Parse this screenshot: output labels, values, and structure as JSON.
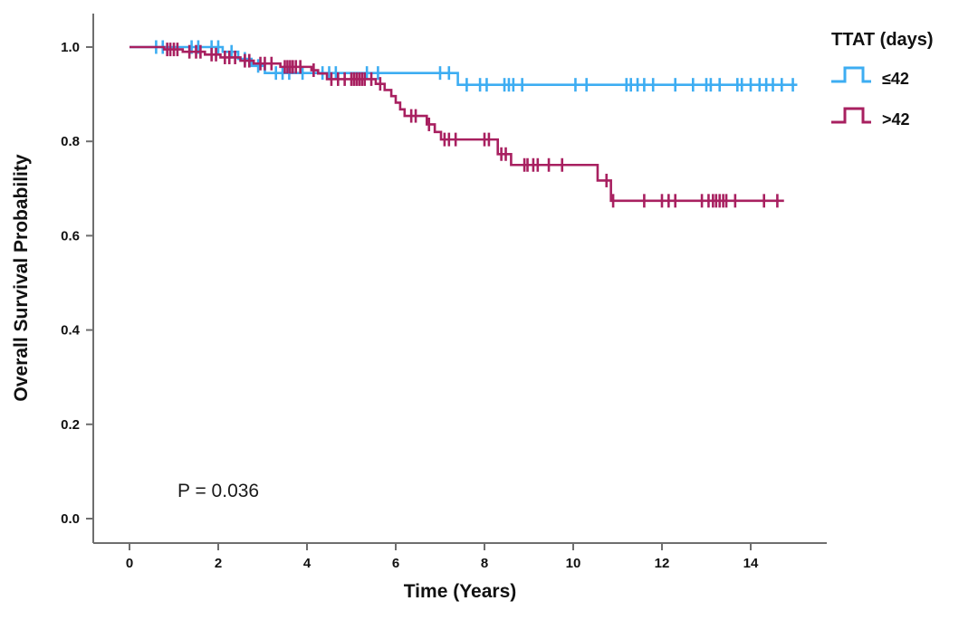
{
  "chart_data": {
    "type": "line",
    "subtype": "kaplan-meier-step-survival",
    "title": "",
    "xlabel": "Time (Years)",
    "ylabel": "Overall Survival Probability",
    "annotation": "P = 0.036",
    "legend_title": "TTAT (days)",
    "legend_position": "top-right-outside",
    "grid": false,
    "xlim": [
      -0.9,
      15.8
    ],
    "ylim": [
      -0.05,
      1.06
    ],
    "xticks": [
      "0",
      "2",
      "4",
      "6",
      "8",
      "10",
      "12",
      "14"
    ],
    "yticks": [
      "0.0",
      "0.2",
      "0.4",
      "0.6",
      "0.8",
      "1.0"
    ],
    "axis_color": "#6e6e6e",
    "series": [
      {
        "name": "≤42",
        "color": "#3dadf2",
        "end_x": 15.05,
        "steps": [
          [
            0,
            1.0
          ],
          [
            2.1,
            0.99
          ],
          [
            2.45,
            0.975
          ],
          [
            2.75,
            0.96
          ],
          [
            3.05,
            0.945
          ],
          [
            7.4,
            0.92
          ]
        ],
        "censors": [
          [
            0.6,
            1.0
          ],
          [
            0.75,
            1.0
          ],
          [
            1.4,
            1.0
          ],
          [
            1.55,
            1.0
          ],
          [
            1.85,
            1.0
          ],
          [
            2.0,
            1.0
          ],
          [
            2.3,
            0.99
          ],
          [
            2.6,
            0.975
          ],
          [
            2.9,
            0.96
          ],
          [
            3.3,
            0.945
          ],
          [
            3.45,
            0.945
          ],
          [
            3.6,
            0.945
          ],
          [
            3.9,
            0.945
          ],
          [
            4.35,
            0.945
          ],
          [
            4.5,
            0.945
          ],
          [
            4.65,
            0.945
          ],
          [
            5.35,
            0.945
          ],
          [
            5.6,
            0.945
          ],
          [
            7.0,
            0.945
          ],
          [
            7.2,
            0.945
          ],
          [
            7.6,
            0.92
          ],
          [
            7.9,
            0.92
          ],
          [
            8.05,
            0.92
          ],
          [
            8.45,
            0.92
          ],
          [
            8.55,
            0.92
          ],
          [
            8.65,
            0.92
          ],
          [
            8.85,
            0.92
          ],
          [
            10.05,
            0.92
          ],
          [
            10.3,
            0.92
          ],
          [
            11.2,
            0.92
          ],
          [
            11.3,
            0.92
          ],
          [
            11.45,
            0.92
          ],
          [
            11.6,
            0.92
          ],
          [
            11.8,
            0.92
          ],
          [
            12.3,
            0.92
          ],
          [
            12.7,
            0.92
          ],
          [
            13.0,
            0.92
          ],
          [
            13.1,
            0.92
          ],
          [
            13.3,
            0.92
          ],
          [
            13.7,
            0.92
          ],
          [
            13.8,
            0.92
          ],
          [
            14.0,
            0.92
          ],
          [
            14.2,
            0.92
          ],
          [
            14.35,
            0.92
          ],
          [
            14.5,
            0.92
          ],
          [
            14.7,
            0.92
          ],
          [
            14.95,
            0.92
          ]
        ]
      },
      {
        "name": ">42",
        "color": "#a82060",
        "end_x": 14.75,
        "steps": [
          [
            0,
            1.0
          ],
          [
            0.78,
            0.995
          ],
          [
            1.2,
            0.99
          ],
          [
            1.7,
            0.984
          ],
          [
            2.05,
            0.978
          ],
          [
            2.5,
            0.971
          ],
          [
            2.8,
            0.965
          ],
          [
            3.4,
            0.958
          ],
          [
            4.1,
            0.951
          ],
          [
            4.25,
            0.944
          ],
          [
            4.45,
            0.932
          ],
          [
            5.55,
            0.922
          ],
          [
            5.75,
            0.909
          ],
          [
            5.9,
            0.896
          ],
          [
            6.0,
            0.882
          ],
          [
            6.1,
            0.868
          ],
          [
            6.2,
            0.854
          ],
          [
            6.7,
            0.836
          ],
          [
            6.88,
            0.82
          ],
          [
            7.02,
            0.804
          ],
          [
            8.3,
            0.773
          ],
          [
            8.6,
            0.75
          ],
          [
            10.55,
            0.717
          ],
          [
            10.85,
            0.674
          ]
        ],
        "censors": [
          [
            0.85,
            0.995
          ],
          [
            0.92,
            0.995
          ],
          [
            1.0,
            0.995
          ],
          [
            1.08,
            0.995
          ],
          [
            1.35,
            0.99
          ],
          [
            1.5,
            0.99
          ],
          [
            1.6,
            0.99
          ],
          [
            1.85,
            0.984
          ],
          [
            1.95,
            0.984
          ],
          [
            2.15,
            0.978
          ],
          [
            2.25,
            0.978
          ],
          [
            2.38,
            0.978
          ],
          [
            2.6,
            0.971
          ],
          [
            2.7,
            0.971
          ],
          [
            2.95,
            0.965
          ],
          [
            3.05,
            0.965
          ],
          [
            3.2,
            0.965
          ],
          [
            3.5,
            0.958
          ],
          [
            3.56,
            0.958
          ],
          [
            3.62,
            0.958
          ],
          [
            3.68,
            0.958
          ],
          [
            3.75,
            0.958
          ],
          [
            3.85,
            0.958
          ],
          [
            4.15,
            0.951
          ],
          [
            4.55,
            0.932
          ],
          [
            4.7,
            0.932
          ],
          [
            4.85,
            0.932
          ],
          [
            5.0,
            0.932
          ],
          [
            5.06,
            0.932
          ],
          [
            5.12,
            0.932
          ],
          [
            5.18,
            0.932
          ],
          [
            5.24,
            0.932
          ],
          [
            5.3,
            0.932
          ],
          [
            5.45,
            0.932
          ],
          [
            5.65,
            0.922
          ],
          [
            6.35,
            0.854
          ],
          [
            6.45,
            0.854
          ],
          [
            6.75,
            0.836
          ],
          [
            7.1,
            0.804
          ],
          [
            7.2,
            0.804
          ],
          [
            7.35,
            0.804
          ],
          [
            8.0,
            0.804
          ],
          [
            8.1,
            0.804
          ],
          [
            8.38,
            0.773
          ],
          [
            8.48,
            0.773
          ],
          [
            8.9,
            0.75
          ],
          [
            8.97,
            0.75
          ],
          [
            9.1,
            0.75
          ],
          [
            9.2,
            0.75
          ],
          [
            9.45,
            0.75
          ],
          [
            9.75,
            0.75
          ],
          [
            10.75,
            0.717
          ],
          [
            10.9,
            0.674
          ],
          [
            11.6,
            0.674
          ],
          [
            12.0,
            0.674
          ],
          [
            12.15,
            0.674
          ],
          [
            12.3,
            0.674
          ],
          [
            12.9,
            0.674
          ],
          [
            13.05,
            0.674
          ],
          [
            13.15,
            0.674
          ],
          [
            13.22,
            0.674
          ],
          [
            13.3,
            0.674
          ],
          [
            13.38,
            0.674
          ],
          [
            13.45,
            0.674
          ],
          [
            13.65,
            0.674
          ],
          [
            14.3,
            0.674
          ],
          [
            14.6,
            0.674
          ]
        ]
      }
    ]
  }
}
